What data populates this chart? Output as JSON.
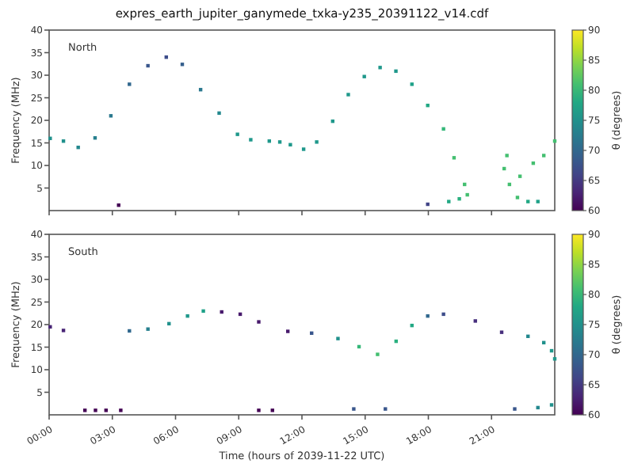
{
  "chart_data": [
    {
      "type": "scatter",
      "title": "expres_earth_jupiter_ganymede_txka-y235_20391122_v14.cdf",
      "ylabel": "Frequency (MHz)",
      "clabel": "θ (degrees)",
      "annotations": [
        "North"
      ],
      "marker": "square",
      "tick_labels": "y",
      "grid": false,
      "xlim": [
        0,
        24
      ],
      "xticks": [
        {
          "value": 0,
          "label": null
        },
        {
          "value": 3,
          "label": null
        },
        {
          "value": 6,
          "label": null
        },
        {
          "value": 9,
          "label": null
        },
        {
          "value": 12,
          "label": null
        },
        {
          "value": 15,
          "label": null
        },
        {
          "value": 18,
          "label": null
        },
        {
          "value": 21,
          "label": null
        }
      ],
      "ylim": [
        0,
        40
      ],
      "yticks": [
        5,
        10,
        15,
        20,
        25,
        30,
        35,
        40
      ],
      "clim": [
        60,
        90
      ],
      "cticks": [
        60,
        65,
        70,
        75,
        80,
        85,
        90
      ],
      "x": [
        0.05,
        0.68,
        1.38,
        2.18,
        2.93,
        3.81,
        4.69,
        5.56,
        6.32,
        7.19,
        8.07,
        8.94,
        9.57,
        10.45,
        10.95,
        11.45,
        12.08,
        12.7,
        13.46,
        14.2,
        14.96,
        15.71,
        16.46,
        17.22,
        17.97,
        18.72,
        19.22,
        19.72,
        19.85,
        19.47,
        18.97,
        21.73,
        21.6,
        21.85,
        22.23,
        22.73,
        23.2,
        22.35,
        22.98,
        23.48,
        24.0,
        3.3,
        17.97
      ],
      "values": [
        16.0,
        15.4,
        14.0,
        16.1,
        21.0,
        28.0,
        32.1,
        34.0,
        32.4,
        26.8,
        21.6,
        16.9,
        15.7,
        15.4,
        15.2,
        14.6,
        13.6,
        15.2,
        19.8,
        25.7,
        29.7,
        31.7,
        30.9,
        28.0,
        23.3,
        18.1,
        11.7,
        5.8,
        3.5,
        2.6,
        2.0,
        12.2,
        9.3,
        5.8,
        2.9,
        2.0,
        2.0,
        7.6,
        10.5,
        12.2,
        15.4,
        1.2,
        1.4
      ],
      "cvalues": [
        75,
        75,
        74,
        73,
        72,
        70,
        68,
        67,
        69,
        72,
        74,
        76,
        76,
        76,
        76,
        76,
        76,
        76,
        76,
        76,
        76,
        76,
        76,
        77,
        78,
        80,
        81,
        81,
        81,
        79,
        78,
        81,
        81,
        81,
        81,
        78,
        77,
        81,
        81,
        81,
        81,
        60,
        66
      ]
    },
    {
      "type": "scatter",
      "ylabel": "Frequency (MHz)",
      "xlabel": "Time (hours of 2039-11-22 UTC)",
      "clabel": "θ (degrees)",
      "annotations": [
        "South"
      ],
      "marker": "square",
      "grid": false,
      "xlim": [
        0,
        24
      ],
      "xticks": [
        {
          "value": 0,
          "label": "00:00"
        },
        {
          "value": 3,
          "label": "03:00"
        },
        {
          "value": 6,
          "label": "06:00"
        },
        {
          "value": 9,
          "label": "09:00"
        },
        {
          "value": 12,
          "label": "12:00"
        },
        {
          "value": 15,
          "label": "15:00"
        },
        {
          "value": 18,
          "label": "18:00"
        },
        {
          "value": 21,
          "label": "21:00"
        }
      ],
      "ylim": [
        0,
        40
      ],
      "yticks": [
        5,
        10,
        15,
        20,
        25,
        30,
        35,
        40
      ],
      "clim": [
        60,
        90
      ],
      "cticks": [
        60,
        65,
        70,
        75,
        80,
        85,
        90
      ],
      "x": [
        0.05,
        0.68,
        3.81,
        4.69,
        5.69,
        6.57,
        7.32,
        8.19,
        9.07,
        9.95,
        11.33,
        12.46,
        13.71,
        14.71,
        15.59,
        16.47,
        17.22,
        17.97,
        18.72,
        20.23,
        21.48,
        22.73,
        23.48,
        23.85,
        24.0,
        1.7,
        2.2,
        2.7,
        3.4,
        9.95,
        10.6,
        14.46,
        15.96,
        22.1,
        23.2,
        23.85
      ],
      "values": [
        19.5,
        18.7,
        18.6,
        19.0,
        20.2,
        21.9,
        23.0,
        22.8,
        22.3,
        20.6,
        18.5,
        18.1,
        16.9,
        15.1,
        13.4,
        16.3,
        19.8,
        21.9,
        22.3,
        20.8,
        18.3,
        17.4,
        16.0,
        14.2,
        12.4,
        1.0,
        1.0,
        1.0,
        1.0,
        1.0,
        1.0,
        1.3,
        1.3,
        1.3,
        1.6,
        2.2
      ],
      "cvalues": [
        63,
        63,
        70,
        73,
        75,
        76,
        77,
        62,
        62,
        62,
        62,
        68,
        75,
        80,
        81,
        79,
        78,
        70,
        67,
        64,
        64,
        74,
        75,
        76,
        76,
        60,
        60,
        60,
        60,
        60,
        60,
        68,
        68,
        68,
        74,
        75
      ]
    }
  ]
}
